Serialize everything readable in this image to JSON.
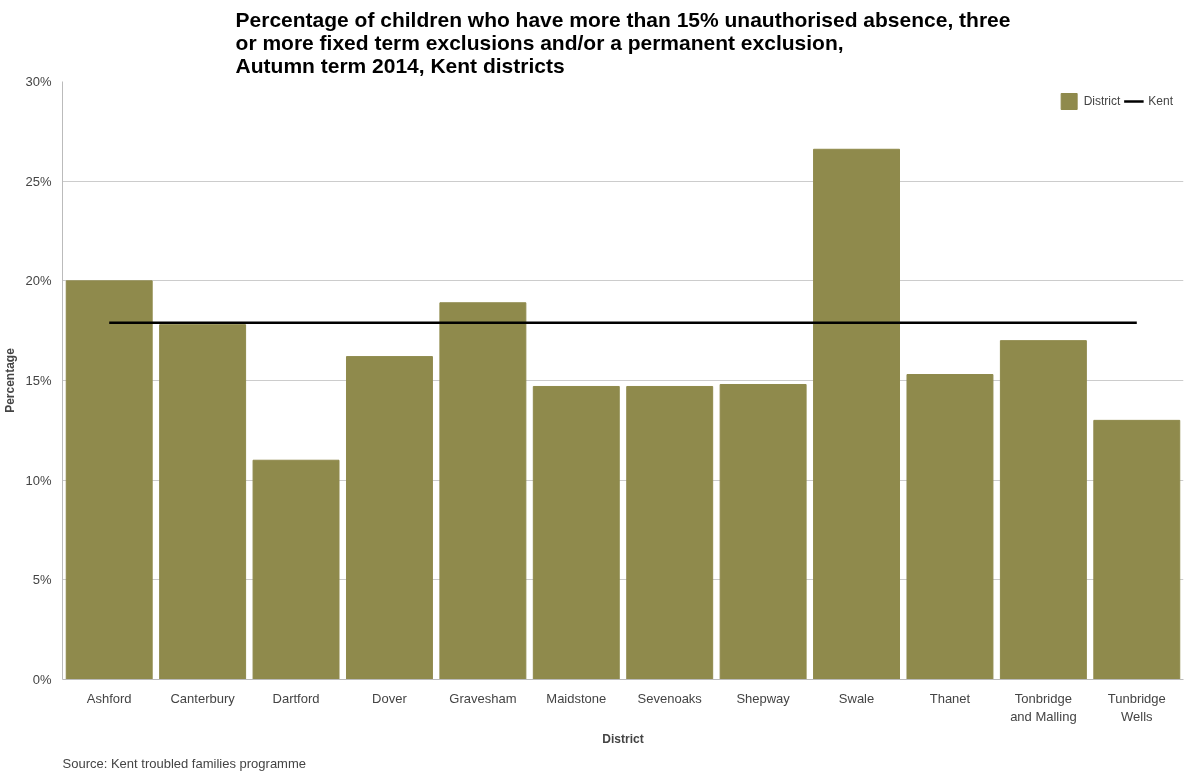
{
  "chart_data": {
    "type": "bar",
    "title": "Percentage of children who have more than 15% unauthorised absence, three\nor more fixed term exclusions and/or a permanent exclusion,\nAutumn term 2014, Kent districts",
    "xlabel": "District",
    "ylabel": "Percentage",
    "categories": [
      "Ashford",
      "Canterbury",
      "Dartford",
      "Dover",
      "Gravesham",
      "Maidstone",
      "Sevenoaks",
      "Shepway",
      "Swale",
      "Thanet",
      "Tonbridge\nand Malling",
      "Tunbridge\nWells"
    ],
    "series": [
      {
        "name": "District",
        "color": "#8f8a4c",
        "values": [
          20.0,
          17.8,
          11.0,
          16.2,
          18.9,
          14.7,
          14.7,
          14.8,
          26.6,
          15.3,
          17.0,
          13.0
        ]
      },
      {
        "name": "Kent",
        "type": "line",
        "color": "#000000",
        "values": [
          17.9,
          17.9,
          17.9,
          17.9,
          17.9,
          17.9,
          17.9,
          17.9,
          17.9,
          17.9,
          17.9,
          17.9
        ]
      }
    ],
    "ylim": [
      0,
      30
    ],
    "yticks": [
      {
        "value": 0,
        "label": "0%"
      },
      {
        "value": 5,
        "label": "5%"
      },
      {
        "value": 10,
        "label": "10%"
      },
      {
        "value": 15,
        "label": "15%"
      },
      {
        "value": 20,
        "label": "20%"
      },
      {
        "value": 25,
        "label": "25%"
      },
      {
        "value": 30,
        "label": "30%"
      }
    ],
    "grid": "y",
    "legend": "top right",
    "annotations": [
      "Source: Kent troubled families programme"
    ]
  }
}
